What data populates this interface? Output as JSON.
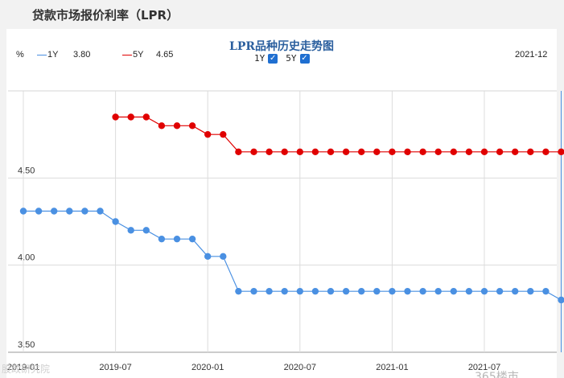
{
  "header": {
    "title": "贷款市场报价利率（LPR）"
  },
  "panel": {
    "chart_title": "LPR品种历史走势图",
    "toggles": [
      {
        "label": "1Y",
        "checked": true
      },
      {
        "label": "5Y",
        "checked": true
      }
    ],
    "unit": "%",
    "latest_period": "2021-12",
    "legend": [
      {
        "name": "1Y",
        "value": "3.80",
        "color": "#4a90e2"
      },
      {
        "name": "5Y",
        "value": "4.65",
        "color": "#e00000"
      }
    ]
  },
  "watermarks": {
    "left": "股政研究院",
    "right": "365楼市"
  },
  "chart_data": {
    "type": "line",
    "title": "LPR品种历史走势图",
    "ylabel": "%",
    "ylim": [
      3.5,
      5.0
    ],
    "yticks": [
      "4.00",
      "4.50",
      "3.50"
    ],
    "xtick_labels": [
      "2019-01",
      "2019-07",
      "2020-01",
      "2020-07",
      "2021-01",
      "2021-07"
    ],
    "x": [
      "2019-01",
      "2019-02",
      "2019-03",
      "2019-04",
      "2019-05",
      "2019-06",
      "2019-07",
      "2019-08",
      "2019-09",
      "2019-10",
      "2019-11",
      "2019-12",
      "2020-01",
      "2020-02",
      "2020-03",
      "2020-04",
      "2020-05",
      "2020-06",
      "2020-07",
      "2020-08",
      "2020-09",
      "2020-10",
      "2020-11",
      "2020-12",
      "2021-01",
      "2021-02",
      "2021-03",
      "2021-04",
      "2021-05",
      "2021-06",
      "2021-07",
      "2021-08",
      "2021-09",
      "2021-10",
      "2021-11",
      "2021-12"
    ],
    "series": [
      {
        "name": "1Y",
        "color": "#4a90e2",
        "values": [
          4.31,
          4.31,
          4.31,
          4.31,
          4.31,
          4.31,
          4.25,
          4.2,
          4.2,
          4.15,
          4.15,
          4.15,
          4.05,
          4.05,
          3.85,
          3.85,
          3.85,
          3.85,
          3.85,
          3.85,
          3.85,
          3.85,
          3.85,
          3.85,
          3.85,
          3.85,
          3.85,
          3.85,
          3.85,
          3.85,
          3.85,
          3.85,
          3.85,
          3.85,
          3.85,
          3.8
        ]
      },
      {
        "name": "5Y",
        "color": "#e00000",
        "values": [
          null,
          null,
          null,
          null,
          null,
          null,
          4.85,
          4.85,
          4.85,
          4.8,
          4.8,
          4.8,
          4.75,
          4.75,
          4.65,
          4.65,
          4.65,
          4.65,
          4.65,
          4.65,
          4.65,
          4.65,
          4.65,
          4.65,
          4.65,
          4.65,
          4.65,
          4.65,
          4.65,
          4.65,
          4.65,
          4.65,
          4.65,
          4.65,
          4.65,
          4.65
        ]
      }
    ]
  }
}
